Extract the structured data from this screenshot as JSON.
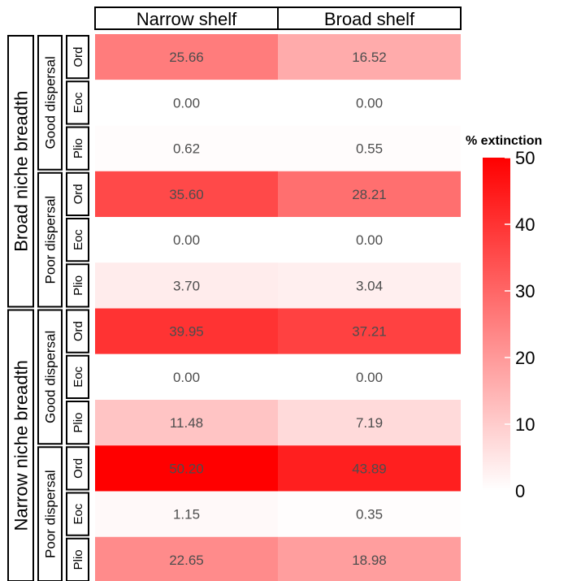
{
  "chart_data": {
    "type": "heatmap",
    "columns": [
      "Narrow shelf",
      "Broad shelf"
    ],
    "rows": [
      {
        "niche": "Broad niche breadth",
        "dispersal": "Good dispersal",
        "epoch": "Ord",
        "values": [
          25.66,
          16.52
        ],
        "labels": [
          "25.66",
          "16.52"
        ]
      },
      {
        "niche": "Broad niche breadth",
        "dispersal": "Good dispersal",
        "epoch": "Eoc",
        "values": [
          0.0,
          0.0
        ],
        "labels": [
          "0.00",
          "0.00"
        ]
      },
      {
        "niche": "Broad niche breadth",
        "dispersal": "Good dispersal",
        "epoch": "Plio",
        "values": [
          0.62,
          0.55
        ],
        "labels": [
          "0.62",
          "0.55"
        ]
      },
      {
        "niche": "Broad niche breadth",
        "dispersal": "Poor dispersal",
        "epoch": "Ord",
        "values": [
          35.6,
          28.21
        ],
        "labels": [
          "35.60",
          "28.21"
        ]
      },
      {
        "niche": "Broad niche breadth",
        "dispersal": "Poor dispersal",
        "epoch": "Eoc",
        "values": [
          0.0,
          0.0
        ],
        "labels": [
          "0.00",
          "0.00"
        ]
      },
      {
        "niche": "Broad niche breadth",
        "dispersal": "Poor dispersal",
        "epoch": "Plio",
        "values": [
          3.7,
          3.04
        ],
        "labels": [
          "3.70",
          "3.04"
        ]
      },
      {
        "niche": "Narrow niche breadth",
        "dispersal": "Good dispersal",
        "epoch": "Ord",
        "values": [
          39.95,
          37.21
        ],
        "labels": [
          "39.95",
          "37.21"
        ]
      },
      {
        "niche": "Narrow niche breadth",
        "dispersal": "Good dispersal",
        "epoch": "Eoc",
        "values": [
          0.0,
          0.0
        ],
        "labels": [
          "0.00",
          "0.00"
        ]
      },
      {
        "niche": "Narrow niche breadth",
        "dispersal": "Good dispersal",
        "epoch": "Plio",
        "values": [
          11.48,
          7.19
        ],
        "labels": [
          "11.48",
          "7.19"
        ]
      },
      {
        "niche": "Narrow niche breadth",
        "dispersal": "Poor dispersal",
        "epoch": "Ord",
        "values": [
          50.2,
          43.89
        ],
        "labels": [
          "50.20",
          "43.89"
        ]
      },
      {
        "niche": "Narrow niche breadth",
        "dispersal": "Poor dispersal",
        "epoch": "Eoc",
        "values": [
          1.15,
          0.35
        ],
        "labels": [
          "1.15",
          "0.35"
        ]
      },
      {
        "niche": "Narrow niche breadth",
        "dispersal": "Poor dispersal",
        "epoch": "Plio",
        "values": [
          22.65,
          18.98
        ],
        "labels": [
          "22.65",
          "18.98"
        ]
      }
    ],
    "legend": {
      "title": "% extinction",
      "ticks": [
        0,
        10,
        20,
        30,
        40,
        50
      ],
      "range": [
        0,
        50
      ],
      "low_color": "#ffffff",
      "high_color": "#ff0000"
    },
    "grid": false
  }
}
